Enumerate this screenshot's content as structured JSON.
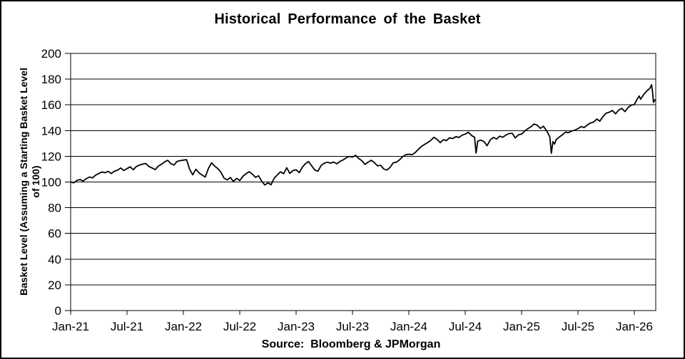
{
  "chart": {
    "title": "Historical Performance of the Basket",
    "y_axis_title_line1": "Basket Level (Assuming a Starting Basket Level",
    "y_axis_title_line2": "of 100)",
    "source_note": "Source:  Bloomberg & JPMorgan"
  },
  "chart_data": {
    "type": "line",
    "title": "Historical Performance of the Basket",
    "xlabel": "",
    "ylabel": "Basket Level (Assuming a Starting Basket Level of 100)",
    "source": "Source: Bloomberg & JPMorgan",
    "grid": "horizontal",
    "legend_position": "none",
    "line_color": "#000000",
    "background_color": "#ffffff",
    "ylim": [
      0,
      200
    ],
    "y_ticks": [
      0,
      20,
      40,
      60,
      80,
      100,
      120,
      140,
      160,
      180,
      200
    ],
    "x_range": [
      0,
      5.19
    ],
    "x_ticks": [
      {
        "t": 0.0,
        "label": "Jan-21"
      },
      {
        "t": 0.5,
        "label": "Jul-21"
      },
      {
        "t": 1.0,
        "label": "Jan-22"
      },
      {
        "t": 1.5,
        "label": "Jul-22"
      },
      {
        "t": 2.0,
        "label": "Jan-23"
      },
      {
        "t": 2.5,
        "label": "Jul-23"
      },
      {
        "t": 3.0,
        "label": "Jan-24"
      },
      {
        "t": 3.5,
        "label": "Jul-24"
      },
      {
        "t": 4.0,
        "label": "Jan-25"
      },
      {
        "t": 4.5,
        "label": "Jul-25"
      },
      {
        "t": 5.0,
        "label": "Jan-26"
      }
    ],
    "x_unit": "years since Jan-2021 (0.5 = 6 months)",
    "series": [
      {
        "name": "Basket Level",
        "color": "#000000",
        "points": [
          [
            0.0,
            100.0
          ],
          [
            0.028,
            99.4
          ],
          [
            0.056,
            101.2
          ],
          [
            0.083,
            101.9
          ],
          [
            0.111,
            100.7
          ],
          [
            0.139,
            102.6
          ],
          [
            0.167,
            103.9
          ],
          [
            0.194,
            103.2
          ],
          [
            0.222,
            105.4
          ],
          [
            0.25,
            106.6
          ],
          [
            0.278,
            107.8
          ],
          [
            0.306,
            107.2
          ],
          [
            0.333,
            108.3
          ],
          [
            0.361,
            106.6
          ],
          [
            0.389,
            108.5
          ],
          [
            0.417,
            109.2
          ],
          [
            0.444,
            110.9
          ],
          [
            0.472,
            108.9
          ],
          [
            0.5,
            110.4
          ],
          [
            0.528,
            111.8
          ],
          [
            0.556,
            109.6
          ],
          [
            0.583,
            112.0
          ],
          [
            0.611,
            113.2
          ],
          [
            0.639,
            113.9
          ],
          [
            0.667,
            114.4
          ],
          [
            0.694,
            112.1
          ],
          [
            0.722,
            110.9
          ],
          [
            0.75,
            109.6
          ],
          [
            0.778,
            112.4
          ],
          [
            0.806,
            113.8
          ],
          [
            0.833,
            115.6
          ],
          [
            0.861,
            116.9
          ],
          [
            0.889,
            114.2
          ],
          [
            0.917,
            113.2
          ],
          [
            0.944,
            116.0
          ],
          [
            0.972,
            116.6
          ],
          [
            1.0,
            117.0
          ],
          [
            1.028,
            117.4
          ],
          [
            1.056,
            109.8
          ],
          [
            1.083,
            105.6
          ],
          [
            1.111,
            109.9
          ],
          [
            1.139,
            107.1
          ],
          [
            1.167,
            105.3
          ],
          [
            1.194,
            103.9
          ],
          [
            1.222,
            110.6
          ],
          [
            1.25,
            114.9
          ],
          [
            1.278,
            112.3
          ],
          [
            1.306,
            110.4
          ],
          [
            1.333,
            107.6
          ],
          [
            1.361,
            103.0
          ],
          [
            1.389,
            101.6
          ],
          [
            1.417,
            103.5
          ],
          [
            1.444,
            100.4
          ],
          [
            1.472,
            102.8
          ],
          [
            1.5,
            101.1
          ],
          [
            1.528,
            104.4
          ],
          [
            1.556,
            106.4
          ],
          [
            1.583,
            108.0
          ],
          [
            1.611,
            106.2
          ],
          [
            1.639,
            103.6
          ],
          [
            1.667,
            104.8
          ],
          [
            1.694,
            100.7
          ],
          [
            1.722,
            97.7
          ],
          [
            1.75,
            99.3
          ],
          [
            1.778,
            97.9
          ],
          [
            1.806,
            103.0
          ],
          [
            1.833,
            105.5
          ],
          [
            1.861,
            107.9
          ],
          [
            1.889,
            106.5
          ],
          [
            1.917,
            111.1
          ],
          [
            1.944,
            106.7
          ],
          [
            1.972,
            108.9
          ],
          [
            2.0,
            109.5
          ],
          [
            2.028,
            107.3
          ],
          [
            2.056,
            111.5
          ],
          [
            2.083,
            114.3
          ],
          [
            2.111,
            115.9
          ],
          [
            2.139,
            112.4
          ],
          [
            2.167,
            109.2
          ],
          [
            2.194,
            108.4
          ],
          [
            2.222,
            112.9
          ],
          [
            2.25,
            114.6
          ],
          [
            2.278,
            115.4
          ],
          [
            2.306,
            114.7
          ],
          [
            2.333,
            115.5
          ],
          [
            2.361,
            114.1
          ],
          [
            2.389,
            116.0
          ],
          [
            2.417,
            117.2
          ],
          [
            2.444,
            118.8
          ],
          [
            2.472,
            119.9
          ],
          [
            2.5,
            119.4
          ],
          [
            2.528,
            120.8
          ],
          [
            2.556,
            118.3
          ],
          [
            2.583,
            116.5
          ],
          [
            2.611,
            113.7
          ],
          [
            2.639,
            115.5
          ],
          [
            2.667,
            116.9
          ],
          [
            2.694,
            115.1
          ],
          [
            2.722,
            112.5
          ],
          [
            2.75,
            113.0
          ],
          [
            2.778,
            110.1
          ],
          [
            2.806,
            109.3
          ],
          [
            2.833,
            111.3
          ],
          [
            2.861,
            114.9
          ],
          [
            2.889,
            115.4
          ],
          [
            2.917,
            117.2
          ],
          [
            2.944,
            119.6
          ],
          [
            2.972,
            121.2
          ],
          [
            3.0,
            121.6
          ],
          [
            3.028,
            121.2
          ],
          [
            3.056,
            122.8
          ],
          [
            3.083,
            125.4
          ],
          [
            3.111,
            127.6
          ],
          [
            3.139,
            129.2
          ],
          [
            3.167,
            130.7
          ],
          [
            3.194,
            132.3
          ],
          [
            3.222,
            134.8
          ],
          [
            3.25,
            133.2
          ],
          [
            3.278,
            130.6
          ],
          [
            3.306,
            132.9
          ],
          [
            3.333,
            132.2
          ],
          [
            3.361,
            134.4
          ],
          [
            3.389,
            133.8
          ],
          [
            3.417,
            135.3
          ],
          [
            3.444,
            134.6
          ],
          [
            3.472,
            136.4
          ],
          [
            3.5,
            137.3
          ],
          [
            3.528,
            138.7
          ],
          [
            3.556,
            136.2
          ],
          [
            3.583,
            134.8
          ],
          [
            3.596,
            122.5
          ],
          [
            3.611,
            131.8
          ],
          [
            3.639,
            132.6
          ],
          [
            3.667,
            131.4
          ],
          [
            3.694,
            128.2
          ],
          [
            3.722,
            132.8
          ],
          [
            3.75,
            134.6
          ],
          [
            3.778,
            133.4
          ],
          [
            3.806,
            135.7
          ],
          [
            3.833,
            134.8
          ],
          [
            3.861,
            136.5
          ],
          [
            3.889,
            137.7
          ],
          [
            3.917,
            137.9
          ],
          [
            3.944,
            134.3
          ],
          [
            3.972,
            136.7
          ],
          [
            4.0,
            137.3
          ],
          [
            4.028,
            139.6
          ],
          [
            4.056,
            141.5
          ],
          [
            4.083,
            143.0
          ],
          [
            4.111,
            145.1
          ],
          [
            4.139,
            144.2
          ],
          [
            4.167,
            141.7
          ],
          [
            4.194,
            143.4
          ],
          [
            4.222,
            139.8
          ],
          [
            4.25,
            135.1
          ],
          [
            4.264,
            122.3
          ],
          [
            4.278,
            131.4
          ],
          [
            4.292,
            129.5
          ],
          [
            4.306,
            132.8
          ],
          [
            4.333,
            134.9
          ],
          [
            4.361,
            136.6
          ],
          [
            4.389,
            138.8
          ],
          [
            4.417,
            138.4
          ],
          [
            4.444,
            139.6
          ],
          [
            4.472,
            140.3
          ],
          [
            4.5,
            141.5
          ],
          [
            4.528,
            143.1
          ],
          [
            4.556,
            142.3
          ],
          [
            4.583,
            144.4
          ],
          [
            4.611,
            145.9
          ],
          [
            4.639,
            146.6
          ],
          [
            4.667,
            149.0
          ],
          [
            4.694,
            147.3
          ],
          [
            4.722,
            150.9
          ],
          [
            4.75,
            153.5
          ],
          [
            4.778,
            154.3
          ],
          [
            4.806,
            155.6
          ],
          [
            4.833,
            153.0
          ],
          [
            4.861,
            155.9
          ],
          [
            4.889,
            157.3
          ],
          [
            4.917,
            154.8
          ],
          [
            4.944,
            157.9
          ],
          [
            4.972,
            159.8
          ],
          [
            5.0,
            160.3
          ],
          [
            5.028,
            164.9
          ],
          [
            5.044,
            166.9
          ],
          [
            5.056,
            164.3
          ],
          [
            5.083,
            168.1
          ],
          [
            5.111,
            170.8
          ],
          [
            5.139,
            172.9
          ],
          [
            5.153,
            175.7
          ],
          [
            5.163,
            169.0
          ],
          [
            5.17,
            161.9
          ],
          [
            5.18,
            163.9
          ],
          [
            5.188,
            163.2
          ]
        ]
      }
    ]
  }
}
